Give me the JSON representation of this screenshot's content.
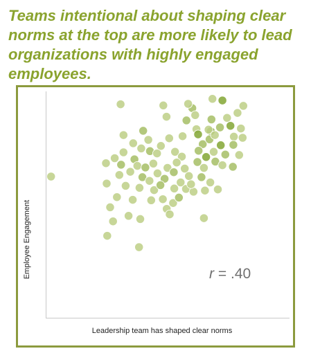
{
  "headline": "Teams intentional about shaping clear norms at the top are more likely to lead organizations with highly engaged employees.",
  "colors": {
    "headline": "#8aa32e",
    "frame": "#8c9a3e",
    "point_light": "#bfd08a",
    "point_mid": "#a9c06a",
    "point_dark": "#86a83a",
    "axis": "#c8c8c8",
    "annotation": "#707070"
  },
  "chart_data": {
    "type": "scatter",
    "title": "",
    "xlabel": "Leadership team has shaped clear norms",
    "ylabel": "Employee Engagement",
    "xlim": [
      0,
      100
    ],
    "ylim": [
      0,
      100
    ],
    "grid": false,
    "legend": "none",
    "annotation": {
      "r_symbol": "r",
      "r_text": "= .40"
    },
    "points": [
      [
        30.5,
        94.3,
        0
      ],
      [
        48.1,
        93.8,
        0
      ],
      [
        68.3,
        96.7,
        0
      ],
      [
        72.4,
        96.0,
        2
      ],
      [
        81.0,
        93.6,
        0
      ],
      [
        60.0,
        92.6,
        1
      ],
      [
        78.6,
        90.5,
        0
      ],
      [
        49.4,
        88.8,
        0
      ],
      [
        61.2,
        89.5,
        0
      ],
      [
        57.6,
        87.2,
        1
      ],
      [
        67.9,
        87.6,
        1
      ],
      [
        74.3,
        88.3,
        0
      ],
      [
        39.8,
        82.6,
        1
      ],
      [
        61.7,
        83.3,
        0
      ],
      [
        67.6,
        82.4,
        2
      ],
      [
        66.7,
        83.1,
        0
      ],
      [
        71.4,
        84.1,
        1
      ],
      [
        75.7,
        84.8,
        2
      ],
      [
        80.0,
        83.6,
        0
      ],
      [
        41.9,
        78.6,
        0
      ],
      [
        31.7,
        80.7,
        0
      ],
      [
        47.1,
        75.9,
        0
      ],
      [
        50.5,
        79.3,
        0
      ],
      [
        56.0,
        80.2,
        0
      ],
      [
        62.4,
        81.0,
        2
      ],
      [
        64.3,
        76.7,
        1
      ],
      [
        67.1,
        78.8,
        1
      ],
      [
        69.3,
        80.7,
        0
      ],
      [
        71.7,
        76.2,
        2
      ],
      [
        77.1,
        80.0,
        0
      ],
      [
        80.7,
        79.5,
        0
      ],
      [
        76.9,
        76.4,
        1
      ],
      [
        42.6,
        73.6,
        1
      ],
      [
        39.0,
        74.8,
        0
      ],
      [
        31.7,
        73.1,
        0
      ],
      [
        28.1,
        70.5,
        0
      ],
      [
        36.2,
        70.0,
        1
      ],
      [
        45.5,
        72.6,
        0
      ],
      [
        52.9,
        73.3,
        0
      ],
      [
        55.7,
        71.2,
        0
      ],
      [
        62.6,
        73.8,
        1
      ],
      [
        65.7,
        71.0,
        2
      ],
      [
        68.8,
        73.3,
        0
      ],
      [
        73.6,
        72.1,
        1
      ],
      [
        79.3,
        71.9,
        0
      ],
      [
        24.5,
        68.3,
        0
      ],
      [
        30.7,
        67.6,
        1
      ],
      [
        37.4,
        67.1,
        0
      ],
      [
        40.7,
        66.4,
        1
      ],
      [
        44.0,
        68.1,
        0
      ],
      [
        49.8,
        66.2,
        0
      ],
      [
        53.6,
        68.6,
        0
      ],
      [
        56.9,
        65.9,
        0
      ],
      [
        62.1,
        68.8,
        1
      ],
      [
        64.8,
        66.2,
        0
      ],
      [
        69.5,
        69.0,
        1
      ],
      [
        72.4,
        67.4,
        0
      ],
      [
        76.7,
        66.7,
        1
      ],
      [
        30.0,
        63.1,
        0
      ],
      [
        34.5,
        64.5,
        0
      ],
      [
        39.5,
        62.1,
        1
      ],
      [
        45.7,
        63.8,
        0
      ],
      [
        48.6,
        61.4,
        1
      ],
      [
        52.4,
        64.3,
        1
      ],
      [
        55.2,
        59.8,
        0
      ],
      [
        58.6,
        62.6,
        0
      ],
      [
        63.8,
        62.1,
        1
      ],
      [
        1.9,
        62.4,
        0
      ],
      [
        24.8,
        59.3,
        0
      ],
      [
        32.6,
        58.3,
        0
      ],
      [
        38.3,
        57.4,
        0
      ],
      [
        44.3,
        56.4,
        0
      ],
      [
        46.9,
        58.6,
        1
      ],
      [
        52.6,
        57.1,
        0
      ],
      [
        57.4,
        56.9,
        0
      ],
      [
        60.5,
        55.7,
        0
      ],
      [
        65.2,
        56.2,
        0
      ],
      [
        70.5,
        56.7,
        0
      ],
      [
        29.0,
        53.3,
        0
      ],
      [
        26.2,
        48.8,
        0
      ],
      [
        35.5,
        52.1,
        0
      ],
      [
        43.1,
        51.9,
        0
      ],
      [
        47.9,
        52.4,
        0
      ],
      [
        49.5,
        48.1,
        0
      ],
      [
        52.1,
        50.7,
        0
      ],
      [
        27.4,
        42.6,
        0
      ],
      [
        38.6,
        43.6,
        0
      ],
      [
        64.8,
        44.0,
        0
      ],
      [
        50.7,
        45.7,
        0
      ],
      [
        25.0,
        36.2,
        0
      ],
      [
        38.1,
        31.2,
        0
      ],
      [
        54.5,
        53.1,
        1
      ],
      [
        59.5,
        59.0,
        0
      ],
      [
        67.4,
        59.8,
        0
      ],
      [
        33.8,
        45.0,
        0
      ],
      [
        42.4,
        60.5,
        0
      ],
      [
        35.7,
        77.1,
        0
      ],
      [
        58.3,
        94.5,
        0
      ]
    ]
  }
}
